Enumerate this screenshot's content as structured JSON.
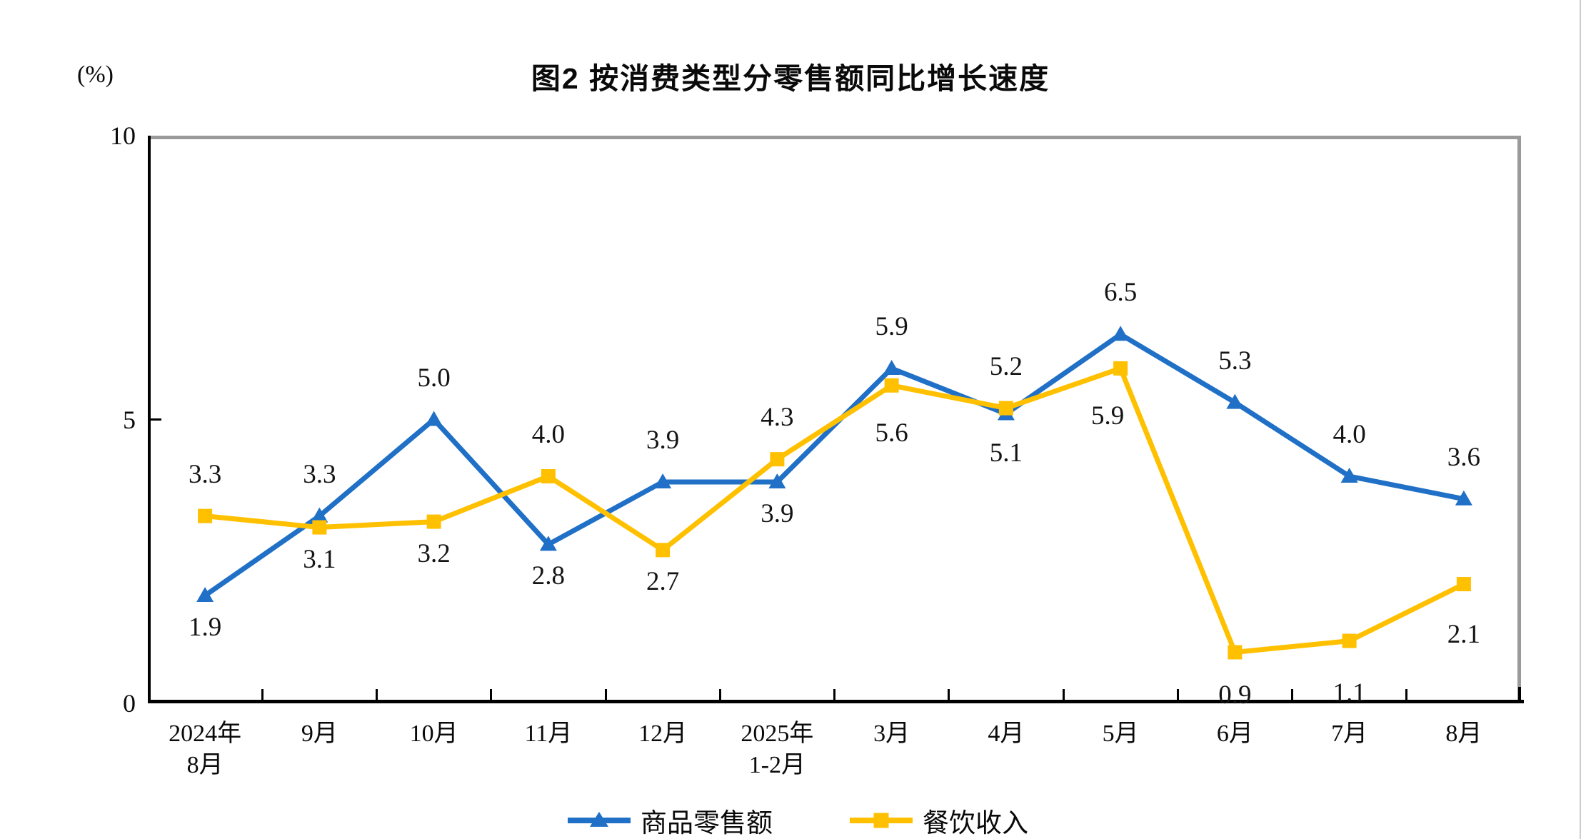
{
  "chart": {
    "title": "图2 按消费类型分零售额同比增长速度",
    "unit_label": "(%)"
  },
  "chart_data": {
    "type": "line",
    "title": "图2 按消费类型分零售额同比增长速度",
    "unit": "(%)",
    "categories": [
      "2024年\n8月",
      "9月",
      "10月",
      "11月",
      "12月",
      "2025年\n1-2月",
      "3月",
      "4月",
      "5月",
      "6月",
      "7月",
      "8月"
    ],
    "series": [
      {
        "name": "商品零售额",
        "color": "#1f70c6",
        "marker": "triangle",
        "values": [
          1.9,
          3.3,
          5.0,
          2.8,
          3.9,
          3.9,
          5.9,
          5.1,
          6.5,
          5.3,
          4.0,
          3.6
        ],
        "label_positions": [
          "below",
          "above",
          "above",
          "below",
          "above",
          "below",
          "above",
          "below",
          "above",
          "above",
          "above",
          "above"
        ]
      },
      {
        "name": "餐饮收入",
        "color": "#ffc000",
        "marker": "square",
        "values": [
          3.3,
          3.1,
          3.2,
          4.0,
          2.7,
          4.3,
          5.6,
          5.2,
          5.9,
          0.9,
          1.1,
          2.1
        ],
        "label_positions": [
          "above",
          "below",
          "below",
          "above",
          "below",
          "above",
          "below",
          "above",
          "below",
          "below",
          "below",
          "below"
        ]
      }
    ],
    "ylim": [
      0,
      10
    ],
    "y_ticks": [
      10,
      5,
      0
    ],
    "grid": false,
    "legend_position": "bottom",
    "axis_color": "#000000",
    "frame_color": "#9a9a9a"
  }
}
